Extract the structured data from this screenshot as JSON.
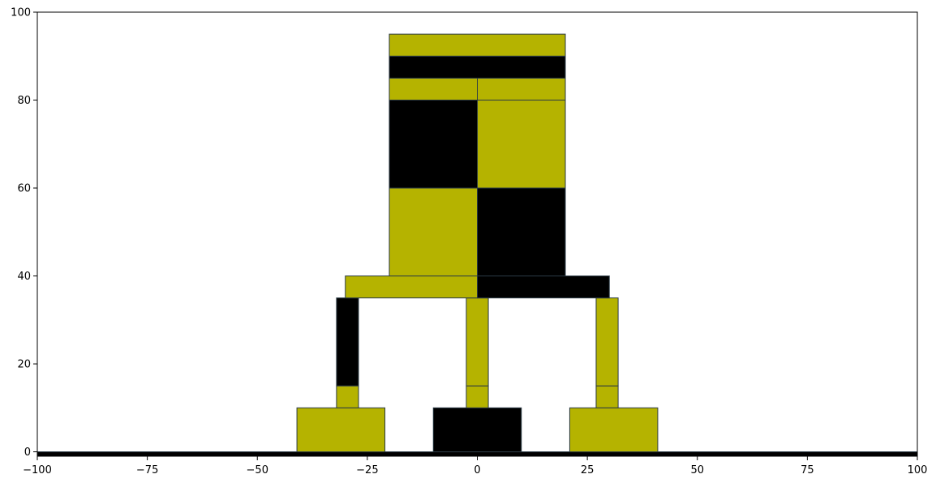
{
  "chart_data": {
    "type": "rectangles",
    "title": "",
    "xlabel": "",
    "ylabel": "",
    "xlim": [
      -100,
      100
    ],
    "ylim": [
      -1,
      100
    ],
    "x_ticks": [
      -100,
      -75,
      -50,
      -25,
      0,
      25,
      50,
      75,
      100
    ],
    "x_tick_labels": [
      "−100",
      "−75",
      "−50",
      "−25",
      "0",
      "25",
      "50",
      "75",
      "100"
    ],
    "y_ticks": [
      0,
      20,
      40,
      60,
      80,
      100
    ],
    "y_tick_labels": [
      "0",
      "20",
      "40",
      "60",
      "80",
      "100"
    ],
    "grid": false,
    "colors": {
      "yellow": "#b5b300",
      "black": "#000000",
      "edge": "#2b3a44"
    },
    "rects": [
      {
        "x0": -100,
        "x1": 100,
        "y0": -1,
        "y1": 0,
        "color": "black"
      },
      {
        "x0": -41,
        "x1": -21,
        "y0": 0,
        "y1": 10,
        "color": "yellow"
      },
      {
        "x0": -10,
        "x1": 10,
        "y0": 0,
        "y1": 10,
        "color": "black"
      },
      {
        "x0": 21,
        "x1": 41,
        "y0": 0,
        "y1": 10,
        "color": "yellow"
      },
      {
        "x0": -32,
        "x1": -27,
        "y0": 10,
        "y1": 15,
        "color": "yellow"
      },
      {
        "x0": -2.5,
        "x1": 2.5,
        "y0": 10,
        "y1": 15,
        "color": "yellow"
      },
      {
        "x0": 27,
        "x1": 32,
        "y0": 10,
        "y1": 15,
        "color": "yellow"
      },
      {
        "x0": -32,
        "x1": -27,
        "y0": 15,
        "y1": 35,
        "color": "black"
      },
      {
        "x0": -2.5,
        "x1": 2.5,
        "y0": 15,
        "y1": 35,
        "color": "yellow"
      },
      {
        "x0": 27,
        "x1": 32,
        "y0": 15,
        "y1": 35,
        "color": "yellow"
      },
      {
        "x0": -30,
        "x1": 0,
        "y0": 35,
        "y1": 40,
        "color": "yellow"
      },
      {
        "x0": 0,
        "x1": 30,
        "y0": 35,
        "y1": 40,
        "color": "black"
      },
      {
        "x0": -20,
        "x1": 0,
        "y0": 40,
        "y1": 60,
        "color": "yellow"
      },
      {
        "x0": 0,
        "x1": 20,
        "y0": 40,
        "y1": 60,
        "color": "black"
      },
      {
        "x0": -20,
        "x1": 0,
        "y0": 60,
        "y1": 80,
        "color": "black"
      },
      {
        "x0": 0,
        "x1": 20,
        "y0": 60,
        "y1": 80,
        "color": "yellow"
      },
      {
        "x0": -20,
        "x1": 0,
        "y0": 80,
        "y1": 85,
        "color": "yellow"
      },
      {
        "x0": 0,
        "x1": 20,
        "y0": 80,
        "y1": 85,
        "color": "yellow"
      },
      {
        "x0": -20,
        "x1": 20,
        "y0": 85,
        "y1": 90,
        "color": "black"
      },
      {
        "x0": -20,
        "x1": 20,
        "y0": 90,
        "y1": 95,
        "color": "yellow"
      }
    ]
  }
}
